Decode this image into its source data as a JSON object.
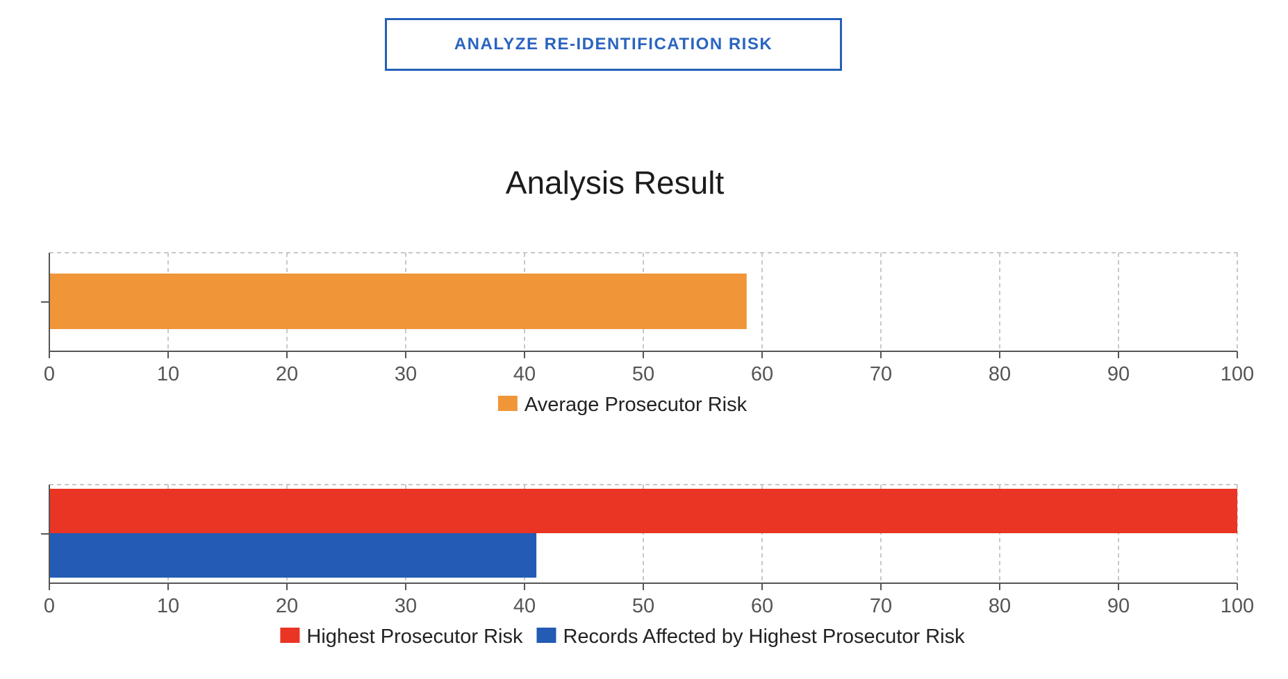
{
  "analyze_button": {
    "label": "ANALYZE RE-IDENTIFICATION RISK"
  },
  "result": {
    "title": "Analysis Result"
  },
  "chart_data": [
    {
      "type": "bar",
      "orientation": "horizontal",
      "xlim": [
        0,
        100
      ],
      "ticks": [
        "0",
        "10",
        "20",
        "30",
        "40",
        "50",
        "60",
        "70",
        "80",
        "90",
        "100"
      ],
      "grid": true,
      "legend_position": "bottom",
      "series": [
        {
          "name": "Average Prosecutor Risk",
          "value": 58.7,
          "color": "#f09639"
        }
      ]
    },
    {
      "type": "bar",
      "orientation": "horizontal",
      "xlim": [
        0,
        100
      ],
      "ticks": [
        "0",
        "10",
        "20",
        "30",
        "40",
        "50",
        "60",
        "70",
        "80",
        "90",
        "100"
      ],
      "grid": true,
      "legend_position": "bottom",
      "series": [
        {
          "name": "Highest Prosecutor Risk",
          "value": 100,
          "color": "#ea3424"
        },
        {
          "name": "Records Affected by Highest Prosecutor Risk",
          "value": 41,
          "color": "#235bb5"
        }
      ]
    }
  ]
}
